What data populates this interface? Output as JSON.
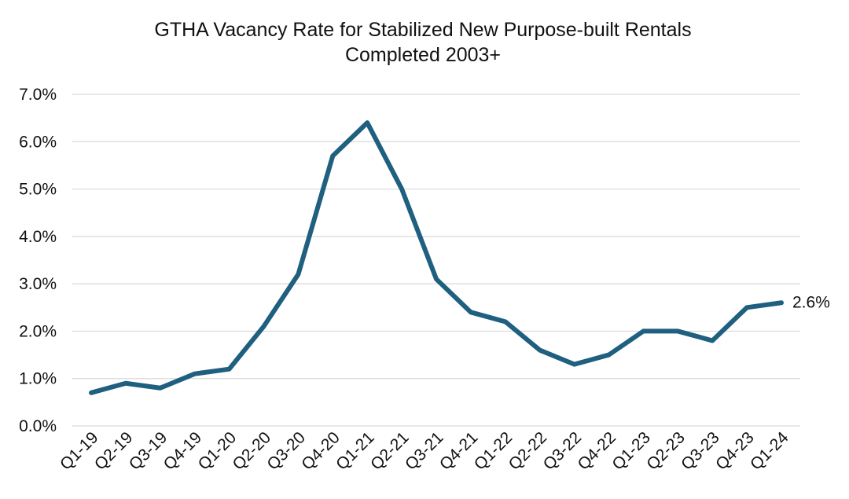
{
  "chart_data": {
    "type": "line",
    "title": "GTHA Vacancy Rate for Stabilized New Purpose-built Rentals",
    "subtitle": "Completed 2003+",
    "xlabel": "",
    "ylabel": "",
    "categories": [
      "Q1-19",
      "Q2-19",
      "Q3-19",
      "Q4-19",
      "Q1-20",
      "Q2-20",
      "Q3-20",
      "Q4-20",
      "Q1-21",
      "Q2-21",
      "Q3-21",
      "Q4-21",
      "Q1-22",
      "Q2-22",
      "Q3-22",
      "Q4-22",
      "Q1-23",
      "Q2-23",
      "Q3-23",
      "Q4-23",
      "Q1-24"
    ],
    "series": [
      {
        "values": [
          0.7,
          0.9,
          0.8,
          1.1,
          1.2,
          2.1,
          3.2,
          5.7,
          6.4,
          5.0,
          3.1,
          2.4,
          2.2,
          1.6,
          1.3,
          1.5,
          2.0,
          2.0,
          1.8,
          2.5,
          2.6
        ],
        "color": "#1f5f7f"
      }
    ],
    "ylim": [
      0,
      7
    ],
    "yticks": [
      "0.0%",
      "1.0%",
      "2.0%",
      "3.0%",
      "4.0%",
      "5.0%",
      "6.0%",
      "7.0%"
    ],
    "grid": true,
    "legend": "none",
    "annotations": [
      {
        "label": "2.6%",
        "category": "Q1-24",
        "value": 2.6
      }
    ]
  }
}
